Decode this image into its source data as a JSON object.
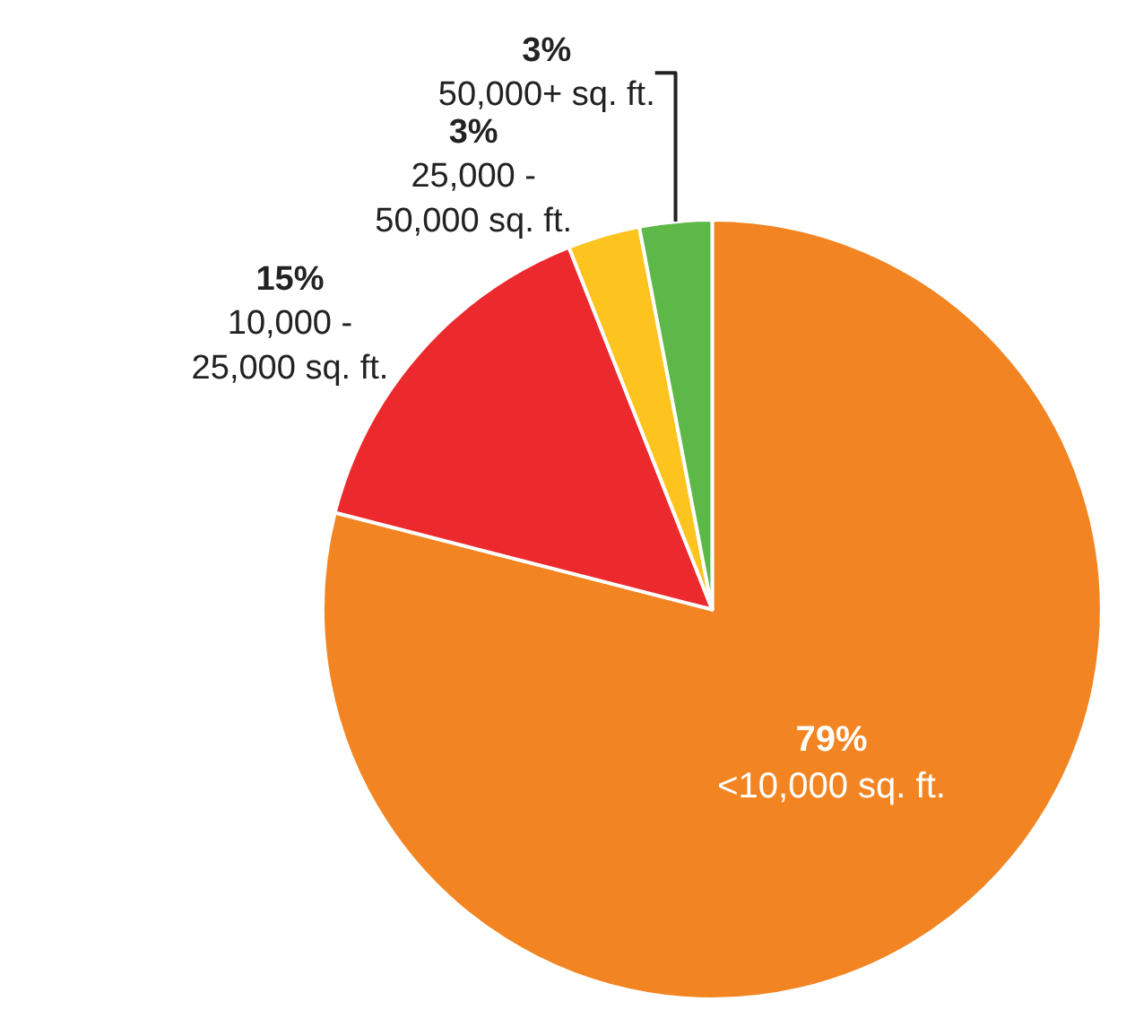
{
  "chart_data": {
    "type": "pie",
    "categories": [
      "<10,000 sq. ft.",
      "10,000 -\n25,000 sq. ft.",
      "25,000 -\n50,000 sq. ft.",
      "50,000+ sq. ft."
    ],
    "values": [
      79,
      15,
      3,
      3
    ],
    "value_labels": [
      "79%",
      "15%",
      "3%",
      "3%"
    ],
    "colors": [
      "#f28522",
      "#ec2a2e",
      "#fdc31f",
      "#5db847"
    ],
    "legend": false
  }
}
